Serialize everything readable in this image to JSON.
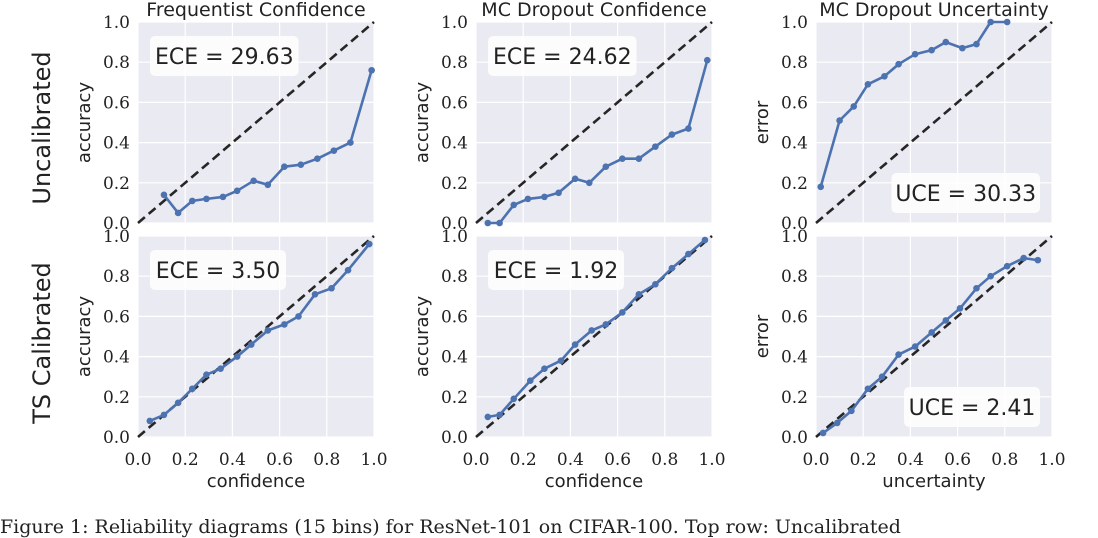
{
  "caption": "Figure 1: Reliability diagrams (15 bins) for ResNet-101 on CIFAR-100. Top row: Uncalibrated",
  "rows": [
    "Uncalibrated",
    "TS Calibrated"
  ],
  "colors": {
    "plot_bg": "#eaeaf2",
    "series": "#4c72b0",
    "diagonal": "#262626",
    "annot_box": "#ffffff"
  },
  "chart_data": [
    {
      "type": "line",
      "title": "Frequentist Confidence",
      "row": "Uncalibrated",
      "xlabel": "",
      "ylabel": "accuracy",
      "xlim": [
        0.0,
        1.0
      ],
      "ylim": [
        0.0,
        1.0
      ],
      "xticks": [
        "0.0",
        "0.2",
        "0.4",
        "0.6",
        "0.8",
        "1.0"
      ],
      "yticks": [
        "0.0",
        "0.2",
        "0.4",
        "0.6",
        "0.8",
        "1.0"
      ],
      "grid": true,
      "annotation": "ECE = 29.63",
      "annotation_position": "top-left",
      "x": [
        0.11,
        0.17,
        0.23,
        0.29,
        0.36,
        0.42,
        0.49,
        0.55,
        0.62,
        0.69,
        0.76,
        0.83,
        0.9,
        0.99
      ],
      "y": [
        0.14,
        0.05,
        0.11,
        0.12,
        0.13,
        0.16,
        0.21,
        0.19,
        0.28,
        0.29,
        0.32,
        0.36,
        0.4,
        0.76
      ]
    },
    {
      "type": "line",
      "title": "MC Dropout Confidence",
      "row": "Uncalibrated",
      "xlabel": "",
      "ylabel": "accuracy",
      "xlim": [
        0.0,
        1.0
      ],
      "ylim": [
        0.0,
        1.0
      ],
      "xticks": [
        "0.0",
        "0.2",
        "0.4",
        "0.6",
        "0.8",
        "1.0"
      ],
      "yticks": [
        "0.0",
        "0.2",
        "0.4",
        "0.6",
        "0.8",
        "1.0"
      ],
      "grid": true,
      "annotation": "ECE = 24.62",
      "annotation_position": "top-left",
      "x": [
        0.05,
        0.1,
        0.16,
        0.22,
        0.29,
        0.35,
        0.42,
        0.48,
        0.55,
        0.62,
        0.69,
        0.76,
        0.83,
        0.9,
        0.98
      ],
      "y": [
        0.0,
        0.0,
        0.09,
        0.12,
        0.13,
        0.15,
        0.22,
        0.2,
        0.28,
        0.32,
        0.32,
        0.38,
        0.44,
        0.47,
        0.81
      ]
    },
    {
      "type": "line",
      "title": "MC Dropout Uncertainty",
      "row": "Uncalibrated",
      "xlabel": "",
      "ylabel": "error",
      "xlim": [
        0.0,
        1.0
      ],
      "ylim": [
        0.0,
        1.0
      ],
      "xticks": [
        "0.0",
        "0.2",
        "0.4",
        "0.6",
        "0.8",
        "1.0"
      ],
      "yticks": [
        "0.0",
        "0.2",
        "0.4",
        "0.6",
        "0.8",
        "1.0"
      ],
      "grid": true,
      "annotation": "UCE = 30.33",
      "annotation_position": "bottom-right",
      "x": [
        0.02,
        0.1,
        0.16,
        0.22,
        0.29,
        0.35,
        0.42,
        0.49,
        0.55,
        0.62,
        0.68,
        0.74,
        0.81
      ],
      "y": [
        0.18,
        0.51,
        0.58,
        0.69,
        0.73,
        0.79,
        0.84,
        0.86,
        0.9,
        0.87,
        0.89,
        1.0,
        1.0
      ]
    },
    {
      "type": "line",
      "title": "",
      "row": "TS Calibrated",
      "xlabel": "confidence",
      "ylabel": "accuracy",
      "xlim": [
        0.0,
        1.0
      ],
      "ylim": [
        0.0,
        1.0
      ],
      "xticks": [
        "0.0",
        "0.2",
        "0.4",
        "0.6",
        "0.8",
        "1.0"
      ],
      "yticks": [
        "0.0",
        "0.2",
        "0.4",
        "0.6",
        "0.8",
        "1.0"
      ],
      "grid": true,
      "annotation": "ECE = 3.50",
      "annotation_position": "top-left",
      "x": [
        0.05,
        0.11,
        0.17,
        0.23,
        0.29,
        0.35,
        0.42,
        0.48,
        0.55,
        0.62,
        0.68,
        0.75,
        0.82,
        0.89,
        0.98
      ],
      "y": [
        0.08,
        0.11,
        0.17,
        0.24,
        0.31,
        0.34,
        0.4,
        0.46,
        0.53,
        0.56,
        0.6,
        0.71,
        0.74,
        0.83,
        0.96
      ]
    },
    {
      "type": "line",
      "title": "",
      "row": "TS Calibrated",
      "xlabel": "confidence",
      "ylabel": "accuracy",
      "xlim": [
        0.0,
        1.0
      ],
      "ylim": [
        0.0,
        1.0
      ],
      "xticks": [
        "0.0",
        "0.2",
        "0.4",
        "0.6",
        "0.8",
        "1.0"
      ],
      "yticks": [
        "0.0",
        "0.2",
        "0.4",
        "0.6",
        "0.8",
        "1.0"
      ],
      "grid": true,
      "annotation": "ECE = 1.92",
      "annotation_position": "top-left",
      "x": [
        0.05,
        0.1,
        0.16,
        0.23,
        0.29,
        0.36,
        0.42,
        0.49,
        0.55,
        0.62,
        0.69,
        0.76,
        0.83,
        0.9,
        0.97
      ],
      "y": [
        0.1,
        0.11,
        0.19,
        0.28,
        0.34,
        0.38,
        0.46,
        0.53,
        0.56,
        0.62,
        0.71,
        0.76,
        0.84,
        0.91,
        0.98
      ]
    },
    {
      "type": "line",
      "title": "",
      "row": "TS Calibrated",
      "xlabel": "uncertainty",
      "ylabel": "error",
      "xlim": [
        0.0,
        1.0
      ],
      "ylim": [
        0.0,
        1.0
      ],
      "xticks": [
        "0.0",
        "0.2",
        "0.4",
        "0.6",
        "0.8",
        "1.0"
      ],
      "yticks": [
        "0.0",
        "0.2",
        "0.4",
        "0.6",
        "0.8",
        "1.0"
      ],
      "grid": true,
      "annotation": "UCE = 2.41",
      "annotation_position": "bottom-right",
      "x": [
        0.03,
        0.09,
        0.15,
        0.22,
        0.28,
        0.35,
        0.42,
        0.49,
        0.55,
        0.61,
        0.68,
        0.74,
        0.81,
        0.88,
        0.94
      ],
      "y": [
        0.02,
        0.07,
        0.13,
        0.24,
        0.3,
        0.41,
        0.45,
        0.52,
        0.58,
        0.64,
        0.74,
        0.8,
        0.85,
        0.89,
        0.88
      ]
    }
  ]
}
